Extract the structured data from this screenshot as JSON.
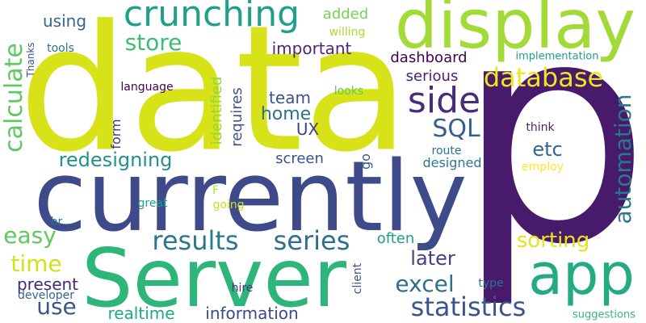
{
  "word_cloud": {
    "words": [
      {
        "id": "p",
        "text": "p",
        "color": "#471a6b"
      },
      {
        "id": "data",
        "text": "data",
        "color": "#d8e219"
      },
      {
        "id": "currently",
        "text": "currently",
        "color": "#3e4a89"
      },
      {
        "id": "server",
        "text": "Server",
        "color": "#2db57a"
      },
      {
        "id": "display",
        "text": "display",
        "color": "#a2da37"
      },
      {
        "id": "crunching",
        "text": "crunching",
        "color": "#1fa187"
      },
      {
        "id": "app",
        "text": "app",
        "color": "#25ab82"
      },
      {
        "id": "side",
        "text": "side",
        "color": "#472c7a"
      },
      {
        "id": "database",
        "text": "database",
        "color": "#f1e51d"
      },
      {
        "id": "sql",
        "text": "SQL",
        "color": "#35608d"
      },
      {
        "id": "statistics",
        "text": "statistics",
        "color": "#3a548c"
      },
      {
        "id": "results",
        "text": "results",
        "color": "#2a788e"
      },
      {
        "id": "series",
        "text": "series",
        "color": "#2d708e"
      },
      {
        "id": "calculate",
        "text": "calculate",
        "color": "#5ec962"
      },
      {
        "id": "automation",
        "text": "automation",
        "color": "#2a788e"
      },
      {
        "id": "store",
        "text": "store",
        "color": "#3dbc74"
      },
      {
        "id": "excel",
        "text": "excel",
        "color": "#2e6e8e"
      },
      {
        "id": "redesigning",
        "text": "redesigning",
        "color": "#21918c"
      },
      {
        "id": "easy",
        "text": "easy",
        "color": "#5ec962"
      },
      {
        "id": "time",
        "text": "time",
        "color": "#d2e21b"
      },
      {
        "id": "use",
        "text": "use",
        "color": "#39568c"
      },
      {
        "id": "sorting",
        "text": "sorting",
        "color": "#e5e419"
      },
      {
        "id": "later",
        "text": "later",
        "color": "#424086"
      },
      {
        "id": "etc",
        "text": "etc",
        "color": "#31668e"
      },
      {
        "id": "home",
        "text": "home",
        "color": "#2c728e"
      },
      {
        "id": "team",
        "text": "team",
        "color": "#3b528b"
      },
      {
        "id": "important",
        "text": "important",
        "color": "#482878"
      },
      {
        "id": "dashboard",
        "text": "dashboard",
        "color": "#440154"
      },
      {
        "id": "serious",
        "text": "serious",
        "color": "#482173"
      },
      {
        "id": "identified",
        "text": "identified",
        "color": "#90d743"
      },
      {
        "id": "requires",
        "text": "requires",
        "color": "#3b528b"
      },
      {
        "id": "ux",
        "text": "UX",
        "color": "#414487"
      },
      {
        "id": "screen",
        "text": "screen",
        "color": "#3b528b"
      },
      {
        "id": "form",
        "text": "form",
        "color": "#46337e"
      },
      {
        "id": "present",
        "text": "present",
        "color": "#482878"
      },
      {
        "id": "information",
        "text": "information",
        "color": "#3e4989"
      },
      {
        "id": "realtime",
        "text": "realtime",
        "color": "#22a884"
      },
      {
        "id": "often",
        "text": "often",
        "color": "#1f9e89"
      },
      {
        "id": "using",
        "text": "using",
        "color": "#31688e"
      },
      {
        "id": "added",
        "text": "added",
        "color": "#7ad151"
      },
      {
        "id": "designed",
        "text": "designed",
        "color": "#2a788e"
      },
      {
        "id": "go",
        "text": "go",
        "color": "#39568c"
      },
      {
        "id": "willing",
        "text": "willing",
        "color": "#addc30"
      },
      {
        "id": "tools",
        "text": "tools",
        "color": "#2c728e"
      },
      {
        "id": "thanks",
        "text": "Thanks",
        "color": "#3b528b"
      },
      {
        "id": "implementation",
        "text": "implementation",
        "color": "#1f9e89"
      },
      {
        "id": "language",
        "text": "language",
        "color": "#440154"
      },
      {
        "id": "looks",
        "text": "looks",
        "color": "#5ec962"
      },
      {
        "id": "think",
        "text": "think",
        "color": "#482475"
      },
      {
        "id": "route",
        "text": "route",
        "color": "#2c728e"
      },
      {
        "id": "employ",
        "text": "employ",
        "color": "#fde725"
      },
      {
        "id": "f",
        "text": "F",
        "color": "#b5de2b"
      },
      {
        "id": "great",
        "text": "great",
        "color": "#1f9e89"
      },
      {
        "id": "going",
        "text": "going",
        "color": "#c8e020"
      },
      {
        "id": "br",
        "text": "br",
        "color": "#2c728e"
      },
      {
        "id": "client",
        "text": "client",
        "color": "#3b528b"
      },
      {
        "id": "type",
        "text": "type",
        "color": "#2a788e"
      },
      {
        "id": "hire",
        "text": "hire",
        "color": "#46337e"
      },
      {
        "id": "developer",
        "text": "developer",
        "color": "#31688e"
      },
      {
        "id": "suggestions",
        "text": "suggestions",
        "color": "#35b779"
      }
    ]
  }
}
